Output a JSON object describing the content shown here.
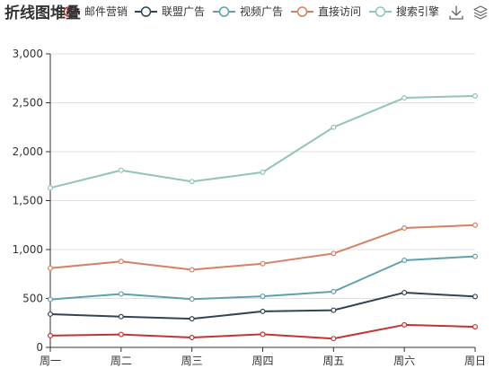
{
  "chart_data": {
    "type": "line",
    "title": "折线图堆叠",
    "categories": [
      "周一",
      "周二",
      "周三",
      "周四",
      "周五",
      "周六",
      "周日"
    ],
    "stacked": true,
    "ylim": [
      0,
      3000
    ],
    "yticks": [
      0,
      500,
      1000,
      1500,
      2000,
      2500,
      3000
    ],
    "ytick_labels": [
      "0",
      "500",
      "1,000",
      "1,500",
      "2,000",
      "2,500",
      "3,000"
    ],
    "grid": true,
    "legend_position": "top",
    "series": [
      {
        "name": "邮件营销",
        "color": "#c23531",
        "values": [
          120,
          132,
          101,
          134,
          90,
          230,
          210
        ]
      },
      {
        "name": "联盟广告",
        "color": "#2f4554",
        "values": [
          220,
          182,
          191,
          234,
          290,
          330,
          310
        ]
      },
      {
        "name": "视频广告",
        "color": "#61a0a8",
        "values": [
          150,
          232,
          201,
          154,
          190,
          330,
          410
        ]
      },
      {
        "name": "直接访问",
        "color": "#d48265",
        "values": [
          320,
          332,
          301,
          334,
          390,
          330,
          320
        ]
      },
      {
        "name": "搜索引擎",
        "color": "#91c7ae",
        "values": [
          820,
          932,
          901,
          934,
          1290,
          1330,
          1320
        ]
      }
    ]
  },
  "toolbox": {
    "items": [
      {
        "name": "save-as-image",
        "icon": "download-icon"
      },
      {
        "name": "data-view",
        "icon": "layers-icon"
      }
    ]
  }
}
